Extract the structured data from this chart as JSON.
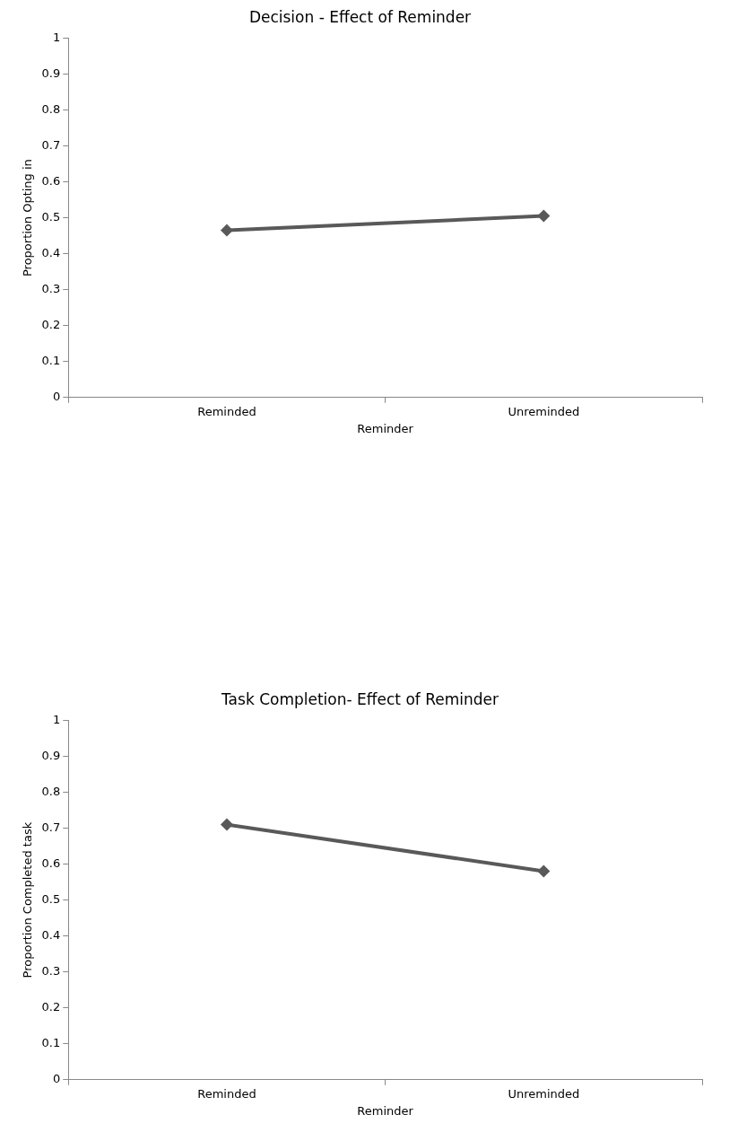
{
  "chart_data": [
    {
      "type": "line",
      "title": "Decision - Effect of Reminder",
      "xlabel": "Reminder",
      "ylabel": "Proportion Opting in",
      "categories": [
        "Reminded",
        "Unreminded"
      ],
      "series": [
        {
          "color": "#595959",
          "values": [
            0.465,
            0.505
          ]
        }
      ],
      "ylim": [
        0,
        1
      ],
      "yticks": [
        0,
        0.1,
        0.2,
        0.3,
        0.4,
        0.5,
        0.6,
        0.7,
        0.8,
        0.9,
        1
      ],
      "grid": false,
      "marker": "diamond",
      "line_style": "solid"
    },
    {
      "type": "line",
      "title": "Task Completion- Effect of Reminder",
      "xlabel": "Reminder",
      "ylabel": "Proportion Completed task",
      "categories": [
        "Reminded",
        "Unreminded"
      ],
      "series": [
        {
          "color": "#595959",
          "values": [
            0.71,
            0.58
          ]
        }
      ],
      "ylim": [
        0,
        1
      ],
      "yticks": [
        0,
        0.1,
        0.2,
        0.3,
        0.4,
        0.5,
        0.6,
        0.7,
        0.8,
        0.9,
        1
      ],
      "grid": false,
      "marker": "diamond",
      "line_style": "solid"
    }
  ]
}
